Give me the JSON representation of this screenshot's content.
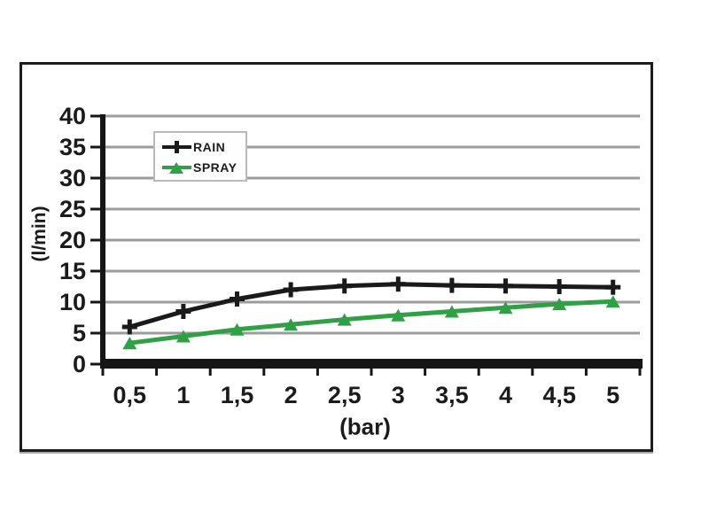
{
  "chart_data": {
    "type": "line",
    "x": [
      0.5,
      1,
      1.5,
      2,
      2.5,
      3,
      3.5,
      4,
      4.5,
      5
    ],
    "x_tick_labels": [
      "0,5",
      "1",
      "1,5",
      "2",
      "2,5",
      "3",
      "3,5",
      "4",
      "4,5",
      "5"
    ],
    "series": [
      {
        "name": "RAIN",
        "color": "#1a1a1a",
        "marker": "plus",
        "values": [
          6,
          8.5,
          10.5,
          12,
          12.6,
          12.9,
          12.7,
          12.6,
          12.5,
          12.4
        ]
      },
      {
        "name": "SPRAY",
        "color": "#2fa045",
        "marker": "triangle",
        "values": [
          3.4,
          4.5,
          5.6,
          6.4,
          7.2,
          7.9,
          8.5,
          9.1,
          9.7,
          10.1
        ]
      }
    ],
    "title": "",
    "xlabel": "(bar)",
    "ylabel": "(l/min)",
    "ylim": [
      0,
      40
    ],
    "yticks": [
      0,
      5,
      10,
      15,
      20,
      25,
      30,
      35,
      40
    ],
    "grid": "horizontal",
    "legend_position": "top-left-inside"
  },
  "colors": {
    "axis": "#161616",
    "gridline": "#9c9c9c",
    "tick_text": "#1b1b1b",
    "frame_border": "#1c1c1c",
    "legend_border": "#b9b9b9",
    "background": "#ffffff"
  }
}
